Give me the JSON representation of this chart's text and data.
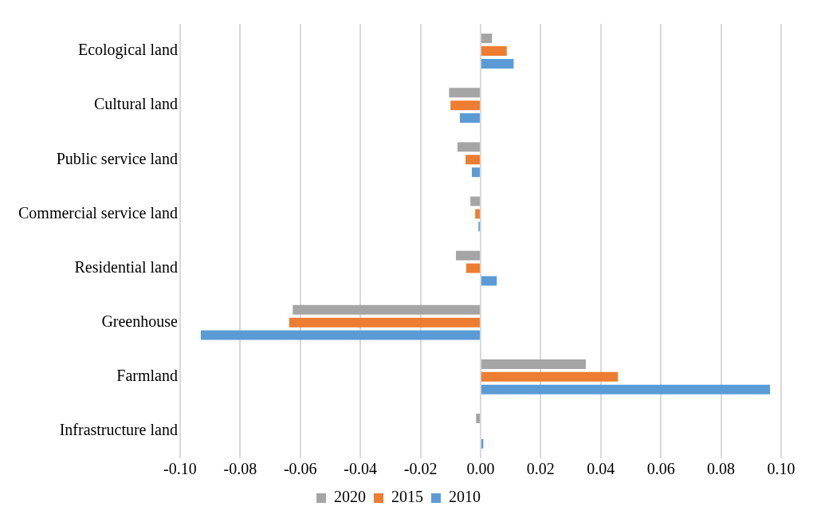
{
  "chart_data": {
    "type": "bar",
    "orientation": "horizontal",
    "categories": [
      "Ecological land",
      "Cultural land",
      "Public service land",
      "Commercial service land",
      "Residential land",
      "Greenhouse",
      "Farmland",
      "Infrastructure land"
    ],
    "series": [
      {
        "name": "2020",
        "color": "#a5a5a5",
        "values": [
          0.0038,
          -0.0105,
          -0.0077,
          -0.0034,
          -0.0082,
          -0.0625,
          0.035,
          -0.0015
        ]
      },
      {
        "name": "2015",
        "color": "#ed7d31",
        "values": [
          0.0087,
          -0.01,
          -0.005,
          -0.0018,
          -0.0048,
          -0.0637,
          0.0457,
          0
        ]
      },
      {
        "name": "2010",
        "color": "#5b9bd5",
        "values": [
          0.011,
          -0.0069,
          -0.0029,
          -0.0007,
          0.0054,
          -0.0931,
          0.0963,
          0.0009
        ]
      }
    ],
    "xlim": [
      -0.1,
      0.1
    ],
    "xticks": [
      {
        "value": -0.1,
        "label": "-0.10"
      },
      {
        "value": -0.08,
        "label": "-0.08"
      },
      {
        "value": -0.06,
        "label": "-0.06"
      },
      {
        "value": -0.04,
        "label": "-0.04"
      },
      {
        "value": -0.02,
        "label": "-0.02"
      },
      {
        "value": 0,
        "label": "0.00"
      },
      {
        "value": 0.02,
        "label": "0.02"
      },
      {
        "value": 0.04,
        "label": "0.04"
      },
      {
        "value": 0.06,
        "label": "0.06"
      },
      {
        "value": 0.08,
        "label": "0.08"
      },
      {
        "value": 0.1,
        "label": "0.10"
      }
    ],
    "grid": "x",
    "legend": "bottom"
  }
}
